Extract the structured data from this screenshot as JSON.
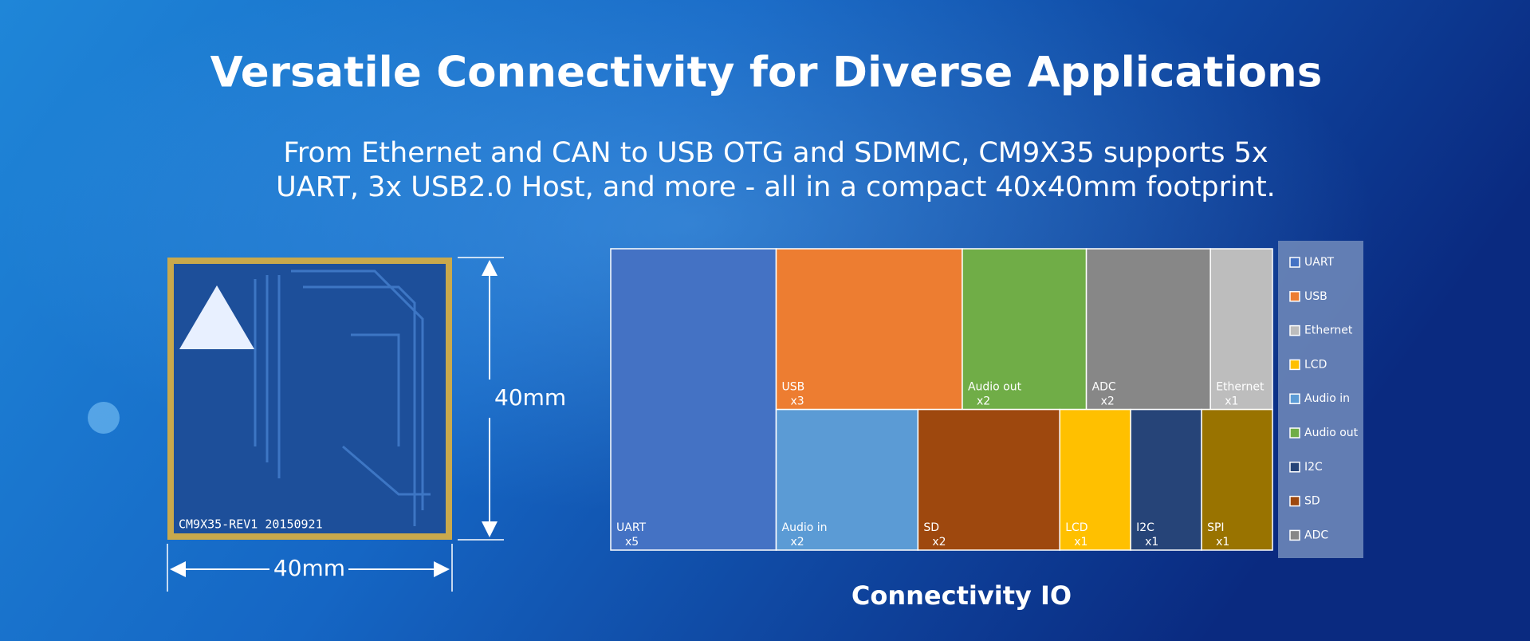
{
  "header": {
    "title": "Versatile Connectivity for Diverse Applications",
    "subtitle": [
      "From Ethernet and CAN to USB OTG and SDMMC, CM9X35 supports 5x",
      "UART, 3x USB2.0 Host, and more - all in a compact 40x40mm footprint."
    ]
  },
  "board": {
    "label": "CM9X35-REV1  20150921",
    "height": "40mm",
    "width": "40mm"
  },
  "chart_data": {
    "type": "treemap",
    "title": "Connectivity IO",
    "categories": [
      "UART",
      "USB",
      "Audio out",
      "ADC",
      "Ethernet",
      "Audio in",
      "SD",
      "LCD",
      "I2C",
      "SPI"
    ],
    "values": [
      5,
      3,
      2,
      2,
      1,
      2,
      2,
      1,
      1,
      1
    ],
    "value_labels": [
      "x5",
      "x3",
      "x2",
      "x2",
      "x1",
      "x2",
      "x2",
      "x1",
      "x1",
      "x1"
    ],
    "colors": [
      "#4472c4",
      "#ed7d31",
      "#70ad47",
      "#878787",
      "#bdbdbd",
      "#5b9bd5",
      "#9e480e",
      "#ffc000",
      "#264478",
      "#997300"
    ],
    "legend": [
      "UART",
      "USB",
      "Ethernet",
      "LCD",
      "Audio in",
      "Audio out",
      "I2C",
      "SD",
      "ADC"
    ]
  }
}
